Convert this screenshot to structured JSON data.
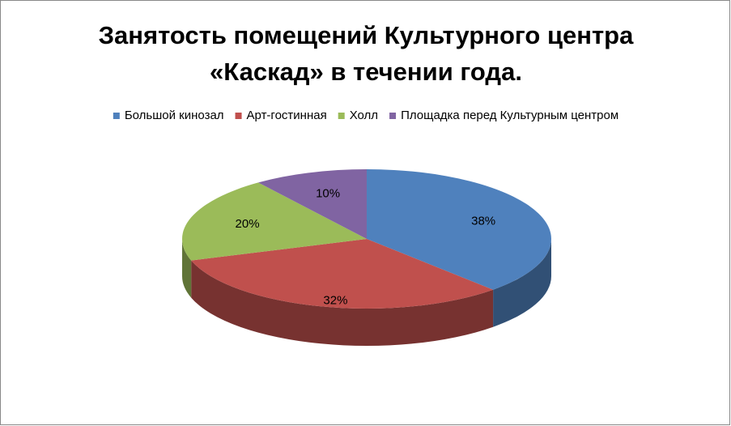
{
  "chart_data": {
    "type": "pie3d",
    "title": [
      "Занятость помещений Культурного центра",
      "«Каскад» в течении года."
    ],
    "categories": [
      "Большой кинозал",
      "Арт-гостинная",
      "Холл",
      "Площадка перед Культурным центром"
    ],
    "values": [
      38,
      32,
      20,
      10
    ],
    "value_labels": [
      "38%",
      "32%",
      "20%",
      "10%"
    ],
    "colors": [
      "#4f81bd",
      "#c0504d",
      "#9bbb59",
      "#8064a2"
    ],
    "legend": "top"
  }
}
